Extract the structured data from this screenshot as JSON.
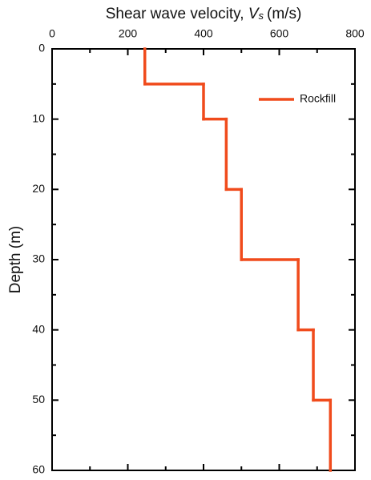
{
  "chart_data": {
    "type": "step",
    "x_label": {
      "text": "Shear wave velocity, ",
      "symbol": "V",
      "subscript": "s",
      "unit": "(m/s)"
    },
    "y_label": "Depth (m)",
    "depth_edges": [
      0,
      5,
      10,
      20,
      30,
      40,
      50,
      60
    ],
    "series": [
      {
        "name": "Rockfill",
        "color": "#f04b1c",
        "values": [
          245,
          400,
          460,
          500,
          650,
          690,
          735
        ]
      }
    ],
    "xlim": [
      0,
      800
    ],
    "xticks": [
      0,
      200,
      400,
      600,
      800
    ],
    "xminorticks": [
      100,
      300,
      500,
      700
    ],
    "ylim": [
      0,
      60
    ],
    "yticks": [
      0,
      10,
      20,
      30,
      40,
      50,
      60
    ],
    "yminorticks": [
      5,
      15,
      25,
      35,
      45,
      55
    ],
    "y_inverted": true,
    "legend": "upper-right"
  }
}
